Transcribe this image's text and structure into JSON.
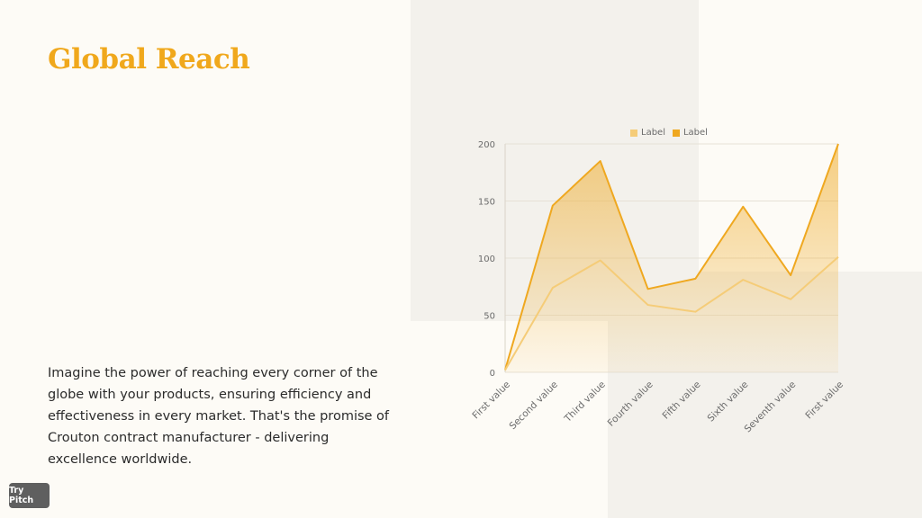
{
  "slide": {
    "title": "Global Reach",
    "body": "Imagine the power of reaching every corner of the globe with your products, ensuring efficiency and effectiveness in every market. That's the promise of Crouton contract manufacturer - delivering excellence worldwide.",
    "try_pitch_label": "Try Pitch"
  },
  "colors": {
    "accent": "#f0a81c",
    "series1": "#f5cc78",
    "series2": "#efa820",
    "background": "#fdfbf6",
    "panel": "#f3f1ec"
  },
  "chart_data": {
    "type": "area",
    "categories": [
      "First value",
      "Second value",
      "Third value",
      "Fourth value",
      "Fifth value",
      "Sixth value",
      "Seventh value",
      "First value"
    ],
    "series": [
      {
        "name": "Label",
        "values": [
          2,
          74,
          98,
          59,
          53,
          81,
          64,
          101
        ],
        "color": "#f5cc78"
      },
      {
        "name": "Label",
        "values": [
          2,
          146,
          185,
          73,
          82,
          145,
          85,
          200
        ],
        "color": "#efa820"
      }
    ],
    "yticks": [
      "0",
      "50",
      "100",
      "150",
      "200"
    ],
    "ylim": [
      0,
      200
    ],
    "grid": true,
    "legend_position": "top"
  }
}
